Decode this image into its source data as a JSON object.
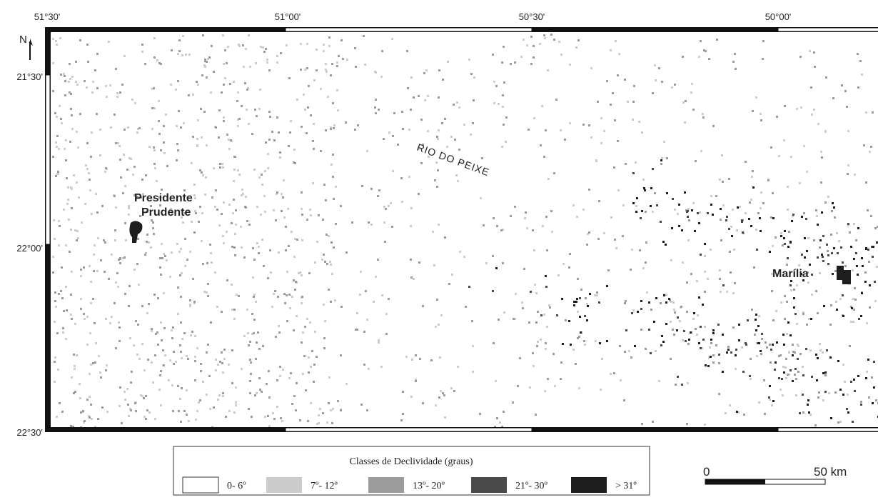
{
  "map": {
    "north": "N",
    "lon_labels": [
      "51°30'",
      "51°00'",
      "50°30'",
      "50°00'"
    ],
    "lat_labels": [
      "21°30'",
      "22°00'",
      "22°30'"
    ],
    "places": {
      "presidente_prudente": [
        "Presidente",
        "Prudente"
      ],
      "marilia": "Marília",
      "river": "RIO DO PEIXE"
    },
    "legend": {
      "title": "Classes de Declividade (graus)",
      "classes": [
        {
          "label": "0- 6º",
          "color": "#ffffff"
        },
        {
          "label": "7º- 12º",
          "color": "#cccccc"
        },
        {
          "label": "13º- 20º",
          "color": "#9c9c9c"
        },
        {
          "label": "21º- 30º",
          "color": "#4a4a4a"
        },
        {
          "label": "> 31º",
          "color": "#1e1e1e"
        }
      ]
    },
    "scale": {
      "start": "0",
      "end": "50 km"
    }
  }
}
